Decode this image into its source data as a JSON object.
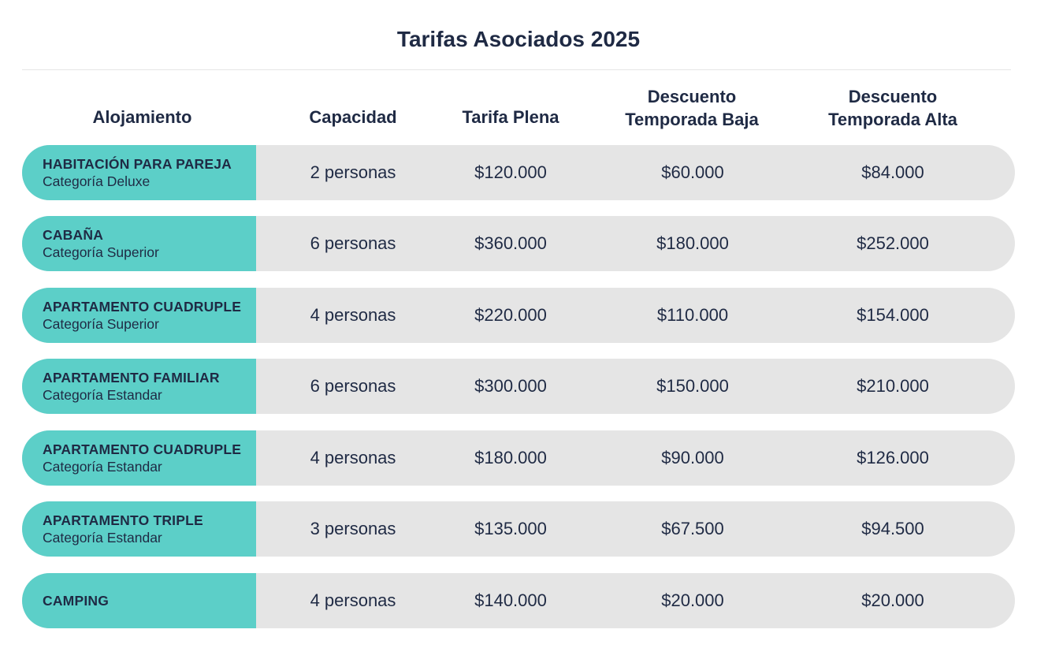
{
  "title": "Tarifas Asociados 2025",
  "headers": {
    "alojamiento": "Alojamiento",
    "capacidad": "Capacidad",
    "tarifa_plena": "Tarifa Plena",
    "baja_line1": "Descuento",
    "baja_line2": "Temporada Baja",
    "alta_line1": "Descuento",
    "alta_line2": "Temporada Alta"
  },
  "rows": [
    {
      "name": "HABITACIÓN PARA PAREJA",
      "category": "Categoría Deluxe",
      "capacidad": "2 personas",
      "tarifa_plena": "$120.000",
      "temporada_baja": "$60.000",
      "temporada_alta": "$84.000"
    },
    {
      "name": "CABAÑA",
      "category": "Categoría Superior",
      "capacidad": "6 personas",
      "tarifa_plena": "$360.000",
      "temporada_baja": "$180.000",
      "temporada_alta": "$252.000"
    },
    {
      "name": "APARTAMENTO CUADRUPLE",
      "category": "Categoría Superior",
      "capacidad": "4 personas",
      "tarifa_plena": "$220.000",
      "temporada_baja": "$110.000",
      "temporada_alta": "$154.000"
    },
    {
      "name": "APARTAMENTO FAMILIAR",
      "category": "Categoría Estandar",
      "capacidad": "6 personas",
      "tarifa_plena": "$300.000",
      "temporada_baja": "$150.000",
      "temporada_alta": "$210.000"
    },
    {
      "name": "APARTAMENTO CUADRUPLE",
      "category": "Categoría Estandar",
      "capacidad": "4 personas",
      "tarifa_plena": "$180.000",
      "temporada_baja": "$90.000",
      "temporada_alta": "$126.000"
    },
    {
      "name": "APARTAMENTO TRIPLE",
      "category": "Categoría Estandar",
      "capacidad": "3 personas",
      "tarifa_plena": "$135.000",
      "temporada_baja": "$67.500",
      "temporada_alta": "$94.500"
    },
    {
      "name": "CAMPING",
      "category": "",
      "capacidad": "4 personas",
      "tarifa_plena": "$140.000",
      "temporada_baja": "$20.000",
      "temporada_alta": "$20.000"
    }
  ],
  "colors": {
    "accent": "#5ccfc8",
    "row_background": "#e5e5e5",
    "text": "#1f2a44"
  }
}
